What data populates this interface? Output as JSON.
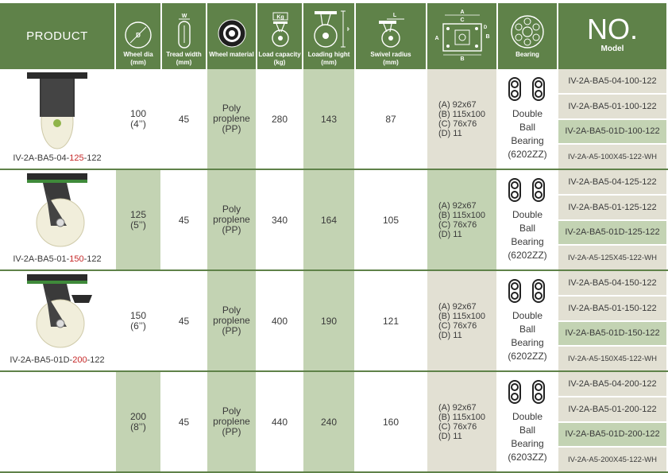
{
  "header": {
    "product": "PRODUCT",
    "wheel_dia": [
      "Wheel dia",
      "(mm)"
    ],
    "tread_width": [
      "Tread width",
      "(mm)"
    ],
    "wheel_material": [
      "Wheel material"
    ],
    "load_capacity": [
      "Load capacity",
      "(kg)"
    ],
    "load_capacity_icon_text": "Kg",
    "loading_height": [
      "Loading hight",
      "(mm)"
    ],
    "swivel_radius": [
      "Swivel radius",
      "(mm)"
    ],
    "bearing": [
      "Bearing"
    ],
    "no_big": "NO.",
    "no_sub": "Model",
    "plate_letters": {
      "a": "A",
      "c": "C",
      "b": "B",
      "d": "D"
    },
    "dim_letters": {
      "d": "D",
      "w": "W",
      "h": "H",
      "l": "L"
    }
  },
  "rows": [
    {
      "product_prefix": "IV-2A-BA5-04-",
      "product_size": "125",
      "product_suffix": "-122",
      "dia_mm": "100",
      "dia_in": "(4’’)",
      "tread": "45",
      "material": [
        "Poly",
        "proplene",
        "(PP)"
      ],
      "load": "280",
      "height": "143",
      "swivel": "87",
      "plate": [
        "(A) 92x67",
        "(B) 115x100",
        "(C) 76x76",
        "(D) 11"
      ],
      "bearing": [
        "Double",
        "Ball",
        "Bearing",
        "(6202ZZ)"
      ],
      "models": [
        "IV-2A-BA5-04-100-122",
        "IV-2A-BA5-01-100-122",
        "IV-2A-BA5-01D-100-122",
        "IV-2A-A5-100X45-122-WH"
      ]
    },
    {
      "product_prefix": "IV-2A-BA5-01-",
      "product_size": "150",
      "product_suffix": "-122",
      "dia_mm": "125",
      "dia_in": "(5’’)",
      "tread": "45",
      "material": [
        "Poly",
        "proplene",
        "(PP)"
      ],
      "load": "340",
      "height": "164",
      "swivel": "105",
      "plate": [
        "(A) 92x67",
        "(B) 115x100",
        "(C) 76x76",
        "(D) 11"
      ],
      "bearing": [
        "Double",
        "Ball",
        "Bearing",
        "(6202ZZ)"
      ],
      "models": [
        "IV-2A-BA5-04-125-122",
        "IV-2A-BA5-01-125-122",
        "IV-2A-BA5-01D-125-122",
        "IV-2A-A5-125X45-122-WH"
      ]
    },
    {
      "product_prefix": "IV-2A-BA5-01D-",
      "product_size": "200",
      "product_suffix": "-122",
      "dia_mm": "150",
      "dia_in": "(6’’)",
      "tread": "45",
      "material": [
        "Poly",
        "proplene",
        "(PP)"
      ],
      "load": "400",
      "height": "190",
      "swivel": "121",
      "plate": [
        "(A) 92x67",
        "(B) 115x100",
        "(C) 76x76",
        "(D) 11"
      ],
      "bearing": [
        "Double",
        "Ball",
        "Bearing",
        "(6202ZZ)"
      ],
      "models": [
        "IV-2A-BA5-04-150-122",
        "IV-2A-BA5-01-150-122",
        "IV-2A-BA5-01D-150-122",
        "IV-2A-A5-150X45-122-WH"
      ]
    },
    {
      "product_prefix": "",
      "product_size": "",
      "product_suffix": "",
      "dia_mm": "200",
      "dia_in": "(8’’)",
      "tread": "45",
      "material": [
        "Poly",
        "proplene",
        "(PP)"
      ],
      "load": "440",
      "height": "240",
      "swivel": "160",
      "plate": [
        "(A) 92x67",
        "(B) 115x100",
        "(C) 76x76",
        "(D) 11"
      ],
      "bearing": [
        "Double",
        "Ball",
        "Bearing",
        "(6203ZZ)"
      ],
      "models": [
        "IV-2A-BA5-04-200-122",
        "IV-2A-BA5-01-200-122",
        "IV-2A-BA5-01D-200-122",
        "IV-2A-A5-200X45-122-WH"
      ]
    }
  ]
}
